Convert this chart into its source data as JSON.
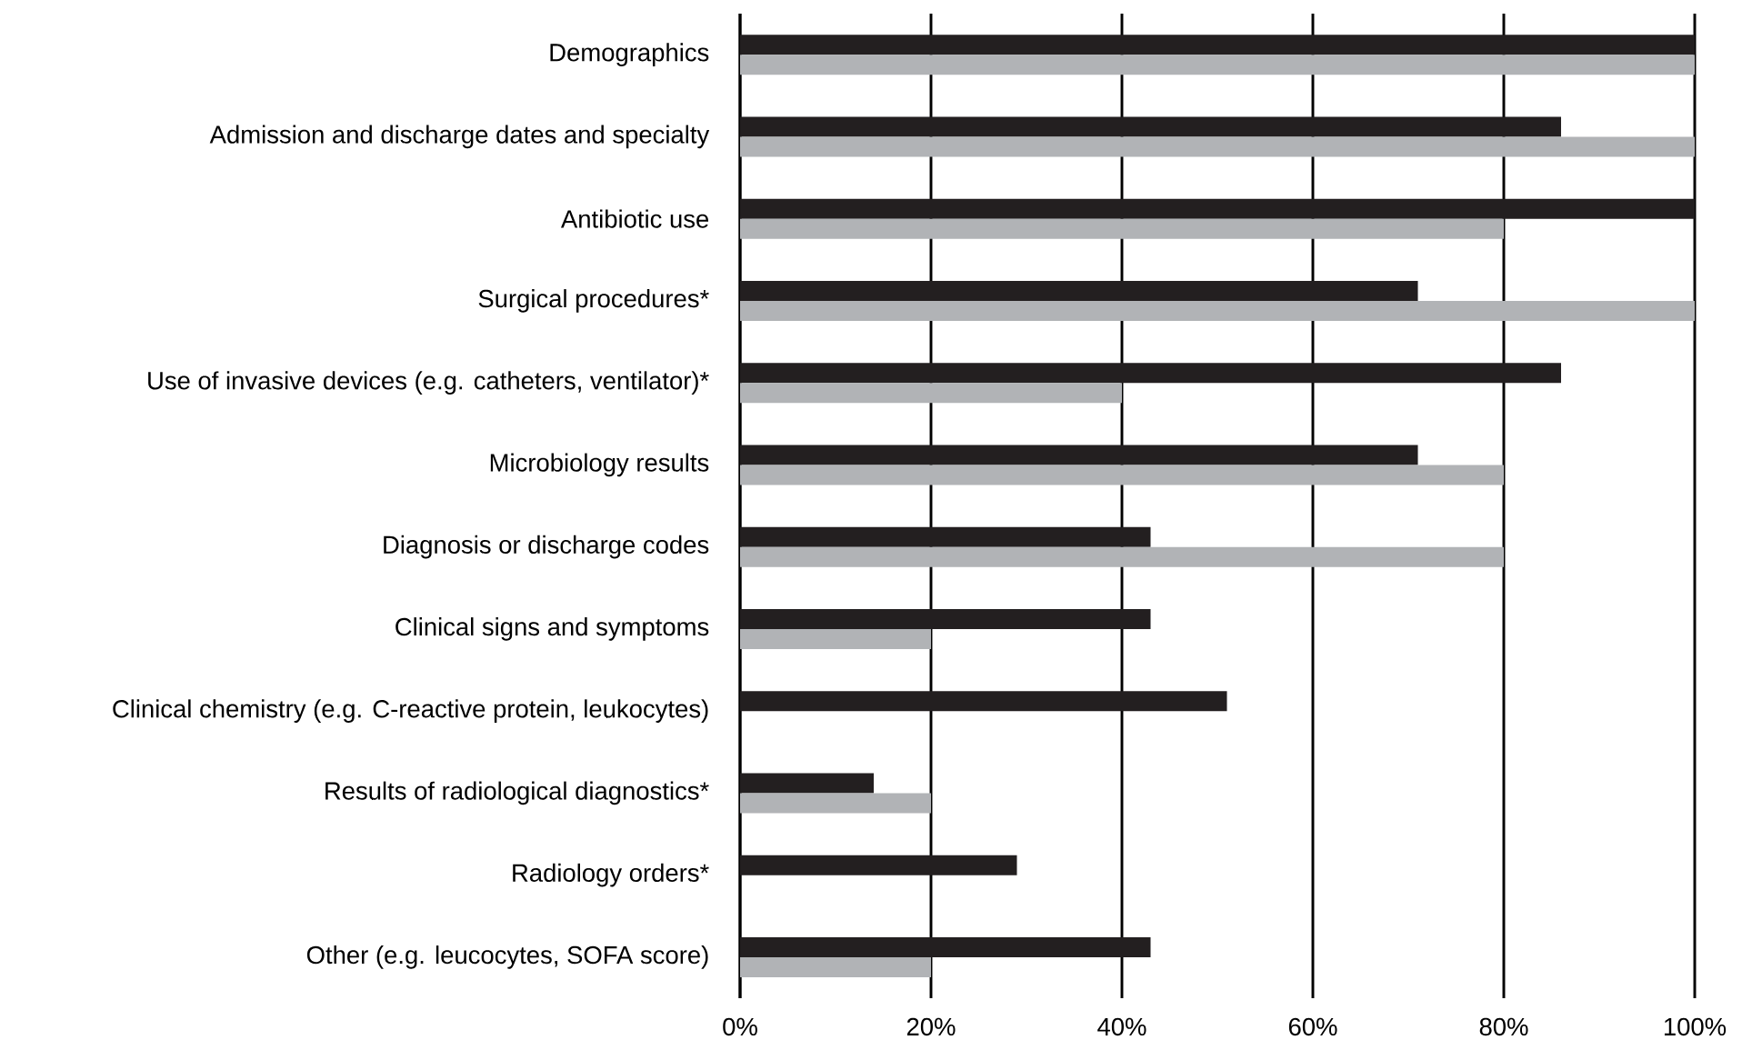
{
  "chart_data": {
    "type": "bar",
    "orientation": "horizontal",
    "categories": [
      "Demographics",
      "Admission and discharge dates and specialty",
      "Antibiotic use",
      "Surgical procedures*",
      "Use of invasive devices (e.g. catheters, ventilator)*",
      "Microbiology results",
      "Diagnosis or discharge codes",
      "Clinical signs and symptoms",
      "Clinical chemistry (e.g. C-reactive protein, leukocytes)",
      "Results of radiological diagnostics*",
      "Radiology orders*",
      "Other (e.g. leucocytes, SOFA score)"
    ],
    "series": [
      {
        "color": "#231f20",
        "values": [
          100,
          86,
          100,
          71,
          86,
          71,
          43,
          43,
          51,
          14,
          29,
          43
        ]
      },
      {
        "color": "#b1b3b6",
        "values": [
          100,
          100,
          80,
          100,
          40,
          80,
          80,
          20,
          null,
          20,
          null,
          20
        ]
      }
    ],
    "xlim": [
      0,
      100
    ],
    "xticks": [
      {
        "value": 0,
        "label": "0%"
      },
      {
        "value": 20,
        "label": "20%"
      },
      {
        "value": 40,
        "label": "40%"
      },
      {
        "value": 60,
        "label": "60%"
      },
      {
        "value": 80,
        "label": "80%"
      },
      {
        "value": 100,
        "label": "100%"
      }
    ],
    "grid": "x"
  }
}
